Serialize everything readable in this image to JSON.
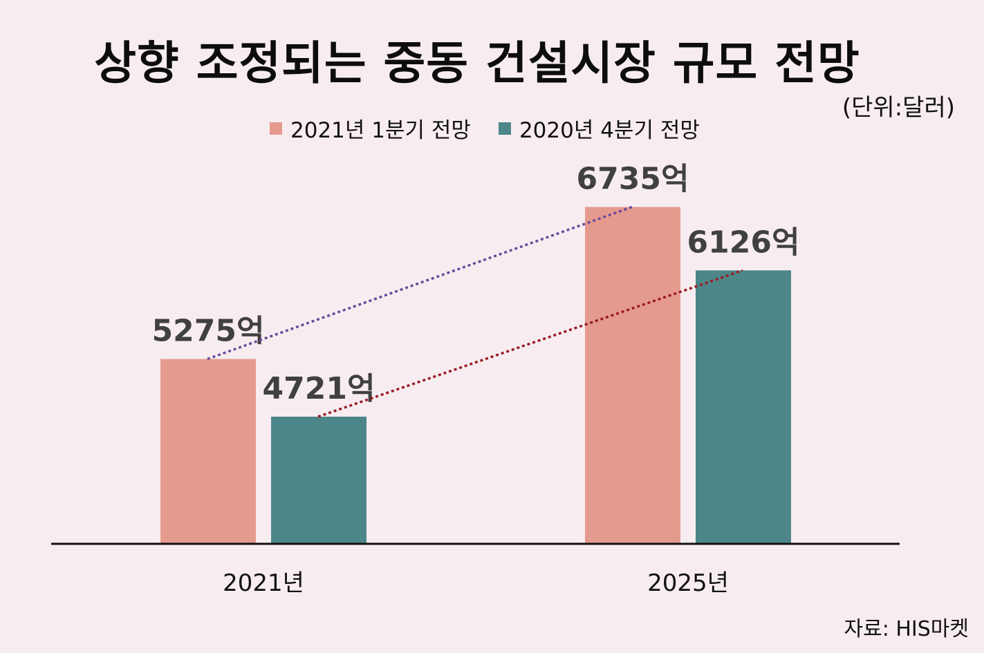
{
  "title": "상향 조정되는 중동 건설시장 규모 전망",
  "unit_note": "(단위:달러)",
  "source": "자료: HIS마켓",
  "colors": {
    "background": "#f7edf1",
    "series_2021q1": "#e59a8e",
    "series_2020q4": "#4d8688",
    "trend_2021q1": "#6a4c9c",
    "trend_2020q4": "#9b1b24",
    "label_text": "#404040",
    "axis": "#111111"
  },
  "chart_data": {
    "type": "bar",
    "title": "상향 조정되는 중동 건설시장 규모 전망",
    "categories": [
      "2021년",
      "2025년"
    ],
    "series": [
      {
        "name": "2021년 1분기 전망",
        "values": [
          5275,
          6735
        ],
        "labels": [
          "5275억",
          "6735억"
        ],
        "color": "#e59a8e"
      },
      {
        "name": "2020년 4분기 전망",
        "values": [
          4721,
          6126
        ],
        "labels": [
          "4721억",
          "6126억"
        ],
        "color": "#4d8688"
      }
    ],
    "ylim": [
      3500,
      7200
    ],
    "grid": false,
    "legend": "top-center",
    "trend_lines": "dotted"
  }
}
